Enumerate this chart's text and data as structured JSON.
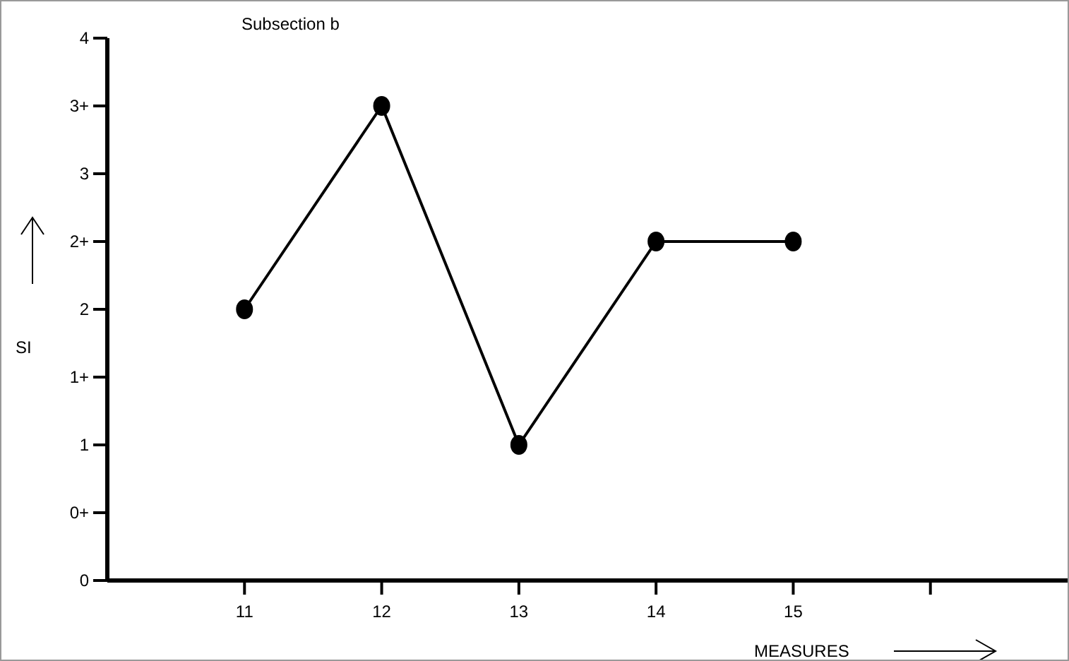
{
  "chart_data": {
    "type": "line",
    "title": "Subsection b",
    "xlabel": "MEASURES",
    "ylabel": "SI",
    "x": [
      11,
      12,
      13,
      14,
      15
    ],
    "values": [
      2,
      3.5,
      1,
      2.5,
      2.5
    ],
    "color": "#000000",
    "marker": "circle",
    "line_style": "solid",
    "xlim": [
      10,
      17
    ],
    "ylim": [
      0,
      4
    ],
    "xticks": [
      11,
      12,
      13,
      14,
      15,
      {
        "value": 16,
        "label": null
      }
    ],
    "yticks": [
      0,
      {
        "value": 0.5,
        "label": "0+"
      },
      1,
      {
        "value": 1.5,
        "label": "1+"
      },
      2,
      {
        "value": 2.5,
        "label": "2+"
      },
      3,
      {
        "value": 3.5,
        "label": "3+"
      },
      4
    ]
  }
}
